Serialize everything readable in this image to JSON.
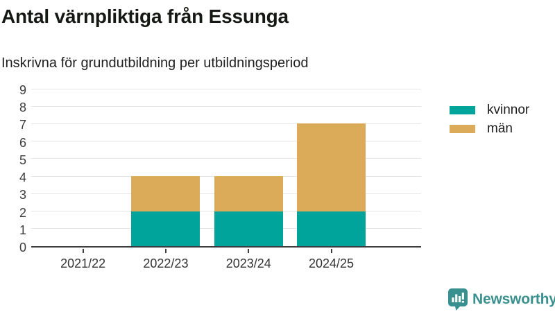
{
  "chart_data": {
    "type": "bar",
    "stacked": true,
    "title": "Antal värnpliktiga från Essunga",
    "subtitle": "Inskrivna för grundutbildning per utbildningsperiod",
    "categories": [
      "2021/22",
      "2022/23",
      "2023/24",
      "2024/25"
    ],
    "series": [
      {
        "name": "kvinnor",
        "values": [
          0,
          2,
          2,
          2
        ],
        "color": "#00a49a"
      },
      {
        "name": "män",
        "values": [
          0,
          2,
          2,
          5
        ],
        "color": "#dbab5a"
      }
    ],
    "ylim": [
      0,
      9
    ],
    "yticks": [
      0,
      1,
      2,
      3,
      4,
      5,
      6,
      7,
      8,
      9
    ],
    "grid": true,
    "legend_position": "top-right",
    "xlabel": "",
    "ylabel": ""
  },
  "footer": {
    "brand": "Newsworthy",
    "brand_color": "#3a908e",
    "icon": "bar-chart-speech-bubble"
  },
  "colors": {
    "grid": "#e5e5e5",
    "axis": "#3d3d3d",
    "title_text": "#161815",
    "body_text": "#1f1f1f",
    "tick_text": "#3c3c3c"
  }
}
